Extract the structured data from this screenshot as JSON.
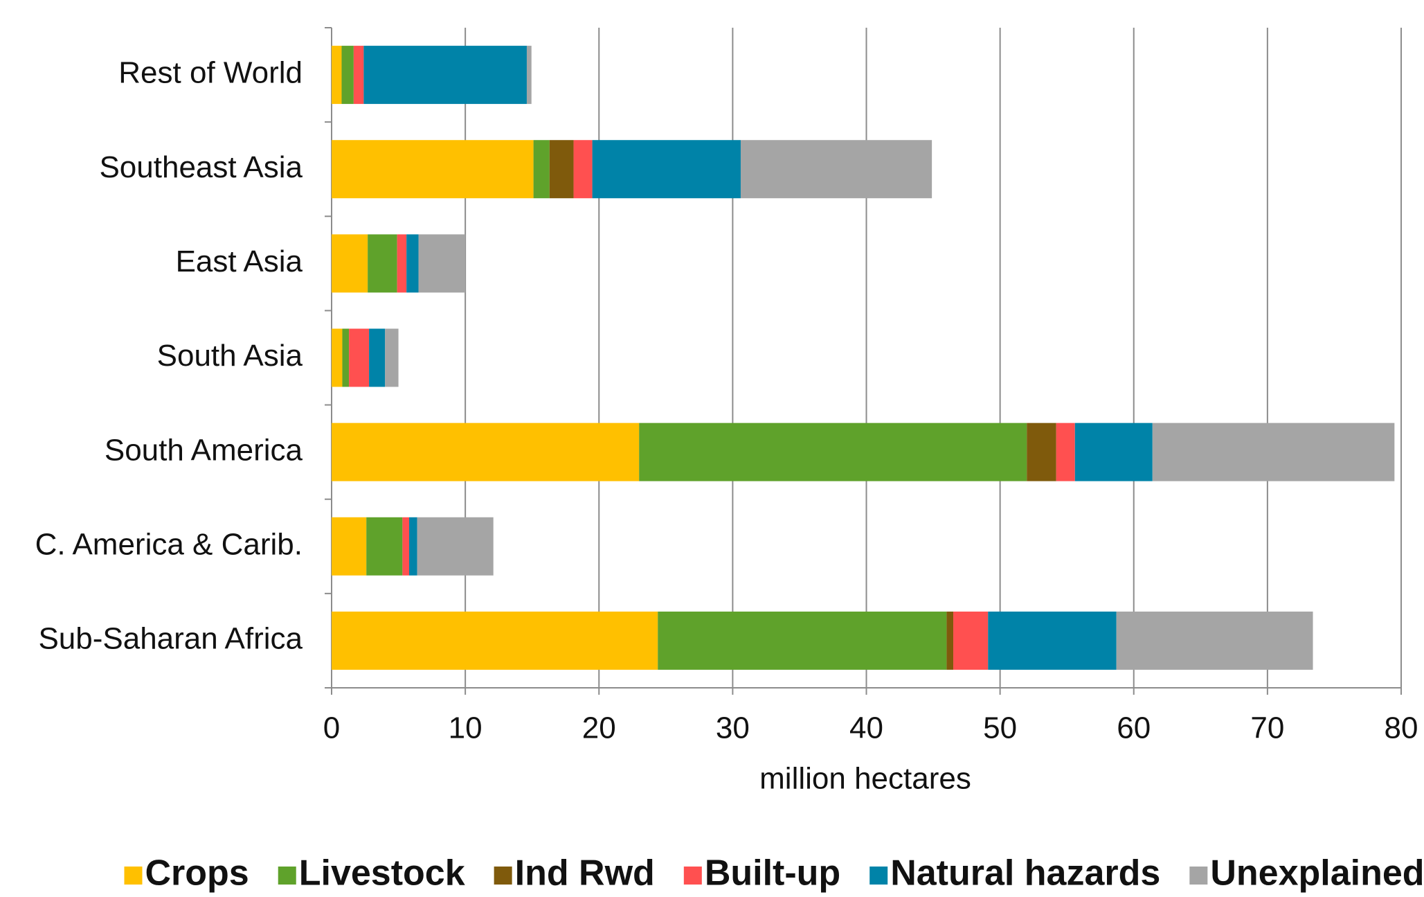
{
  "chart_data": {
    "type": "stacked-horizontal-bar",
    "x_label": "million hectares",
    "categories": [
      "Rest of World",
      "Southeast Asia",
      "East Asia",
      "South Asia",
      "South America",
      "C. America & Carib.",
      "Sub-Saharan Africa"
    ],
    "series": [
      {
        "name": "Crops",
        "color": "#ffc000",
        "values": [
          0.75,
          15.1,
          2.7,
          0.8,
          23.0,
          2.6,
          24.4
        ]
      },
      {
        "name": "Livestock",
        "color": "#5fa22b",
        "values": [
          0.9,
          1.2,
          2.2,
          0.5,
          29.0,
          2.7,
          21.6
        ]
      },
      {
        "name": "Ind Rwd",
        "color": "#7f5a0c",
        "values": [
          0,
          1.8,
          0,
          0,
          2.2,
          0,
          0.5
        ]
      },
      {
        "name": "Built-up",
        "color": "#ff5050",
        "values": [
          0.75,
          1.4,
          0.7,
          1.5,
          1.4,
          0.5,
          2.6
        ]
      },
      {
        "name": "Natural hazards",
        "color": "#0083a8",
        "values": [
          12.2,
          11.1,
          0.9,
          1.2,
          5.8,
          0.6,
          9.6
        ]
      },
      {
        "name": "Unexplained",
        "color": "#a5a5a5",
        "values": [
          0.35,
          14.3,
          3.5,
          1.0,
          18.1,
          5.7,
          14.7
        ]
      }
    ],
    "xlim": [
      0,
      80
    ],
    "xticks": [
      0,
      10,
      20,
      30,
      40,
      50,
      60,
      70,
      80
    ],
    "grid": true,
    "legend": "bottom"
  }
}
